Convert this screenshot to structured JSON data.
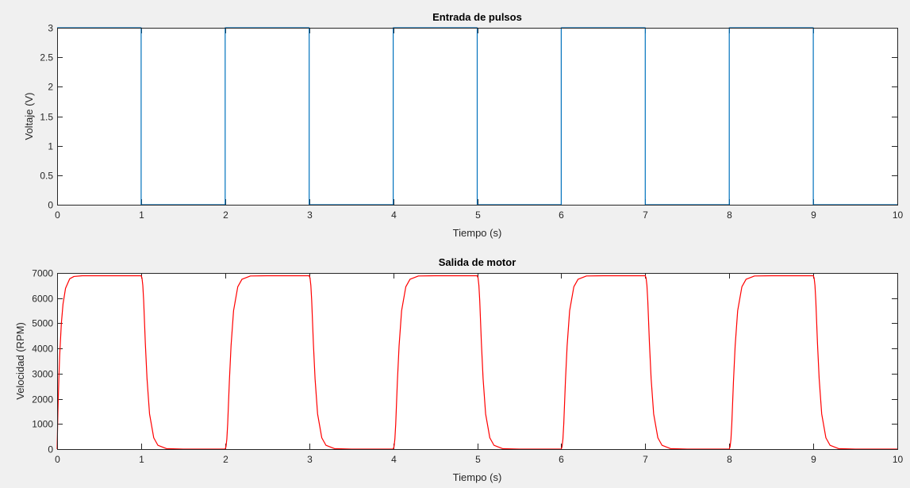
{
  "chart_data": [
    {
      "type": "line",
      "title": "Entrada de pulsos",
      "xlabel": "Tiempo (s)",
      "ylabel": "Voltaje (V)",
      "xlim": [
        0,
        10
      ],
      "ylim": [
        0,
        3
      ],
      "xticks": [
        0,
        1,
        2,
        3,
        4,
        5,
        6,
        7,
        8,
        9,
        10
      ],
      "yticks": [
        0,
        0.5,
        1,
        1.5,
        2,
        2.5,
        3
      ],
      "grid": false,
      "color": "#0072bd",
      "series": [
        {
          "x": [
            0,
            1,
            1,
            2,
            2,
            3,
            3,
            4,
            4,
            5,
            5,
            6,
            6,
            7,
            7,
            8,
            8,
            9,
            9,
            10
          ],
          "y": [
            3,
            3,
            0,
            0,
            3,
            3,
            0,
            0,
            3,
            3,
            0,
            0,
            3,
            3,
            0,
            0,
            3,
            3,
            0,
            0
          ]
        }
      ]
    },
    {
      "type": "line",
      "title": "Salida de motor",
      "xlabel": "Tiempo (s)",
      "ylabel": "Velocidad (RPM)",
      "xlim": [
        0,
        10
      ],
      "ylim": [
        0,
        7000
      ],
      "xticks": [
        0,
        1,
        2,
        3,
        4,
        5,
        6,
        7,
        8,
        9,
        10
      ],
      "yticks": [
        0,
        1000,
        2000,
        3000,
        4000,
        5000,
        6000,
        7000
      ],
      "grid": false,
      "color": "#ff0000",
      "series": [
        {
          "x": [
            0,
            0.01,
            0.02,
            0.03,
            0.05,
            0.07,
            0.1,
            0.15,
            0.2,
            0.3,
            0.5,
            1.0,
            1.01,
            1.02,
            1.03,
            1.05,
            1.07,
            1.1,
            1.15,
            1.2,
            1.3,
            1.5,
            2.0,
            2.01,
            2.02,
            2.03,
            2.05,
            2.07,
            2.1,
            2.15,
            2.2,
            2.3,
            2.5,
            3.0,
            3.01,
            3.02,
            3.03,
            3.05,
            3.07,
            3.1,
            3.15,
            3.2,
            3.3,
            3.5,
            4.0,
            4.01,
            4.02,
            4.03,
            4.05,
            4.07,
            4.1,
            4.15,
            4.2,
            4.3,
            4.5,
            5.0,
            5.01,
            5.02,
            5.03,
            5.05,
            5.07,
            5.1,
            5.15,
            5.2,
            5.3,
            5.5,
            6.0,
            6.01,
            6.02,
            6.03,
            6.05,
            6.07,
            6.1,
            6.15,
            6.2,
            6.3,
            6.5,
            7.0,
            7.01,
            7.02,
            7.03,
            7.05,
            7.07,
            7.1,
            7.15,
            7.2,
            7.3,
            7.5,
            8.0,
            8.01,
            8.02,
            8.03,
            8.05,
            8.07,
            8.1,
            8.15,
            8.2,
            8.3,
            8.5,
            9.0,
            9.01,
            9.02,
            9.03,
            9.05,
            9.07,
            9.1,
            9.15,
            9.2,
            9.3,
            9.5,
            10.0
          ],
          "y": [
            0,
            1550,
            2750,
            3690,
            4980,
            5760,
            6390,
            6770,
            6860,
            6890,
            6890,
            6890,
            6800,
            6500,
            5900,
            4200,
            2800,
            1400,
            450,
            150,
            20,
            0,
            0,
            100,
            400,
            1000,
            2700,
            4100,
            5500,
            6450,
            6750,
            6880,
            6890,
            6890,
            6800,
            6500,
            5900,
            4200,
            2800,
            1400,
            450,
            150,
            20,
            0,
            0,
            100,
            400,
            1000,
            2700,
            4100,
            5500,
            6450,
            6750,
            6880,
            6890,
            6890,
            6800,
            6500,
            5900,
            4200,
            2800,
            1400,
            450,
            150,
            20,
            0,
            0,
            100,
            400,
            1000,
            2700,
            4100,
            5500,
            6450,
            6750,
            6880,
            6890,
            6890,
            6800,
            6500,
            5900,
            4200,
            2800,
            1400,
            450,
            150,
            20,
            0,
            0,
            100,
            400,
            1000,
            2700,
            4100,
            5500,
            6450,
            6750,
            6880,
            6890,
            6890,
            6800,
            6500,
            5900,
            4200,
            2800,
            1400,
            450,
            150,
            20,
            0,
            0
          ]
        }
      ]
    }
  ]
}
